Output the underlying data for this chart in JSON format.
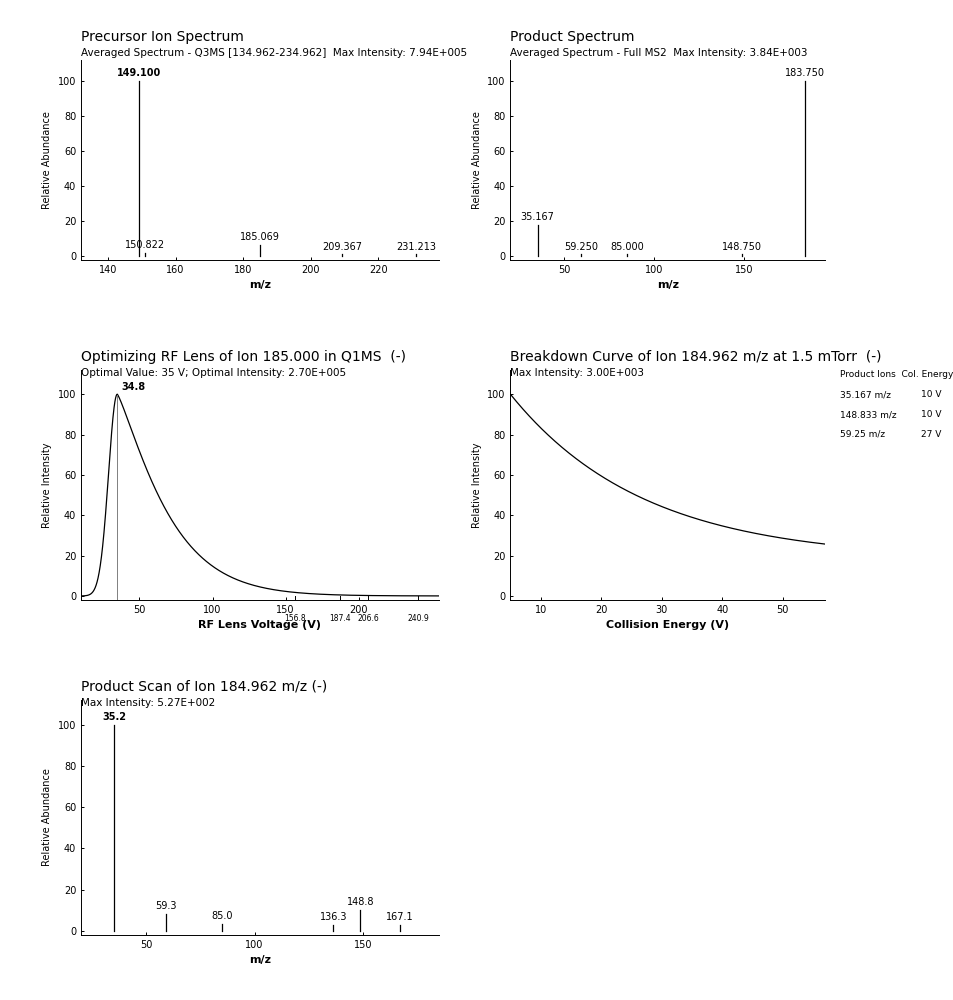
{
  "bg_color": "#ffffff",
  "panel1": {
    "title": "Precursor Ion Spectrum",
    "subtitle": "Averaged Spectrum - Q3MS [134.962-234.962]  Max Intensity: 7.94E+005",
    "peaks": [
      [
        149.1,
        100
      ],
      [
        150.822,
        2.0
      ],
      [
        185.069,
        6.5
      ],
      [
        209.367,
        1.2
      ],
      [
        231.213,
        1.2
      ]
    ],
    "xlim": [
      132,
      238
    ],
    "ylim": [
      -2,
      112
    ],
    "xticks": [
      140,
      160,
      180,
      200,
      220
    ],
    "yticks": [
      0,
      20,
      40,
      60,
      80,
      100
    ],
    "xlabel": "m/z",
    "ylabel": "Relative Abundance",
    "peak_labels": [
      [
        149.1,
        100,
        "149.100",
        true
      ],
      [
        150.822,
        2.0,
        "150.822",
        false
      ],
      [
        185.069,
        6.5,
        "185.069",
        false
      ],
      [
        209.367,
        1.2,
        "209.367",
        false
      ],
      [
        231.213,
        1.2,
        "231.213",
        false
      ]
    ]
  },
  "panel2": {
    "title": "Product Spectrum",
    "subtitle": "Averaged Spectrum - Full MS2  Max Intensity: 3.84E+003",
    "peaks": [
      [
        35.167,
        18
      ],
      [
        59.25,
        1.2
      ],
      [
        85.0,
        1.2
      ],
      [
        148.75,
        1.2
      ],
      [
        183.75,
        100
      ]
    ],
    "xlim": [
      20,
      195
    ],
    "ylim": [
      -2,
      112
    ],
    "xticks": [
      50,
      100,
      150
    ],
    "yticks": [
      0,
      20,
      40,
      60,
      80,
      100
    ],
    "xlabel": "m/z",
    "ylabel": "Relative Abundance",
    "peak_labels": [
      [
        35.167,
        18,
        "35.167",
        false
      ],
      [
        59.25,
        1.2,
        "59.250",
        false
      ],
      [
        85.0,
        1.2,
        "85.000",
        false
      ],
      [
        148.75,
        1.2,
        "148.750",
        false
      ],
      [
        183.75,
        100,
        "183.750",
        false
      ]
    ]
  },
  "panel3": {
    "title": "Optimizing RF Lens of Ion 185.000 in Q1MS  (-)",
    "subtitle": "Optimal Value: 35 V; Optimal Intensity: 2.70E+005",
    "peak_x": 34.8,
    "xlim": [
      10,
      255
    ],
    "ylim": [
      -2,
      112
    ],
    "xticks": [
      50,
      100,
      150,
      200
    ],
    "yticks": [
      0,
      20,
      40,
      60,
      80,
      100
    ],
    "xlabel": "RF Lens Voltage (V)",
    "ylabel": "Relative Intensity",
    "extra_tick_labels": [
      [
        156.8,
        "156.8"
      ],
      [
        187.4,
        "187.4"
      ],
      [
        206.6,
        "206.6"
      ],
      [
        240.9,
        "240.9"
      ]
    ]
  },
  "panel4": {
    "title": "Breakdown Curve of Ion 184.962 m/z at 1.5 mTorr  (-)",
    "subtitle": "Max Intensity: 3.00E+003",
    "xlim": [
      5,
      57
    ],
    "ylim": [
      -2,
      112
    ],
    "xticks": [
      10,
      20,
      30,
      40,
      50
    ],
    "yticks": [
      0,
      20,
      40,
      60,
      80,
      100
    ],
    "xlabel": "Collision Energy (V)",
    "ylabel": "Relative Intensity",
    "legend_header": "Product Ions  Col. Energy",
    "legend_rows": [
      [
        "35.167 m/z",
        "10 V"
      ],
      [
        "148.833 m/z",
        "10 V"
      ],
      [
        "59.25 m/z",
        "27 V"
      ]
    ]
  },
  "panel5": {
    "title": "Product Scan of Ion 184.962 m/z (-)",
    "subtitle": "Max Intensity: 5.27E+002",
    "peaks": [
      [
        35.2,
        100
      ],
      [
        59.3,
        8
      ],
      [
        85.0,
        3.5
      ],
      [
        136.3,
        3
      ],
      [
        148.8,
        10
      ],
      [
        167.1,
        3
      ]
    ],
    "xlim": [
      20,
      185
    ],
    "ylim": [
      -2,
      112
    ],
    "xticks": [
      50,
      100,
      150
    ],
    "yticks": [
      0,
      20,
      40,
      60,
      80,
      100
    ],
    "xlabel": "m/z",
    "ylabel": "Relative Abundance",
    "peak_labels": [
      [
        35.2,
        100,
        "35.2",
        true
      ],
      [
        59.3,
        8,
        "59.3",
        false
      ],
      [
        85.0,
        3.5,
        "85.0",
        false
      ],
      [
        136.3,
        3,
        "136.3",
        false
      ],
      [
        148.8,
        10,
        "148.8",
        false
      ],
      [
        167.1,
        3,
        "167.1",
        false
      ]
    ]
  },
  "layout": {
    "title_fontsize": 10,
    "subtitle_fontsize": 7.5,
    "axis_label_fontsize": 8,
    "tick_label_fontsize": 7,
    "peak_label_fontsize": 7
  }
}
